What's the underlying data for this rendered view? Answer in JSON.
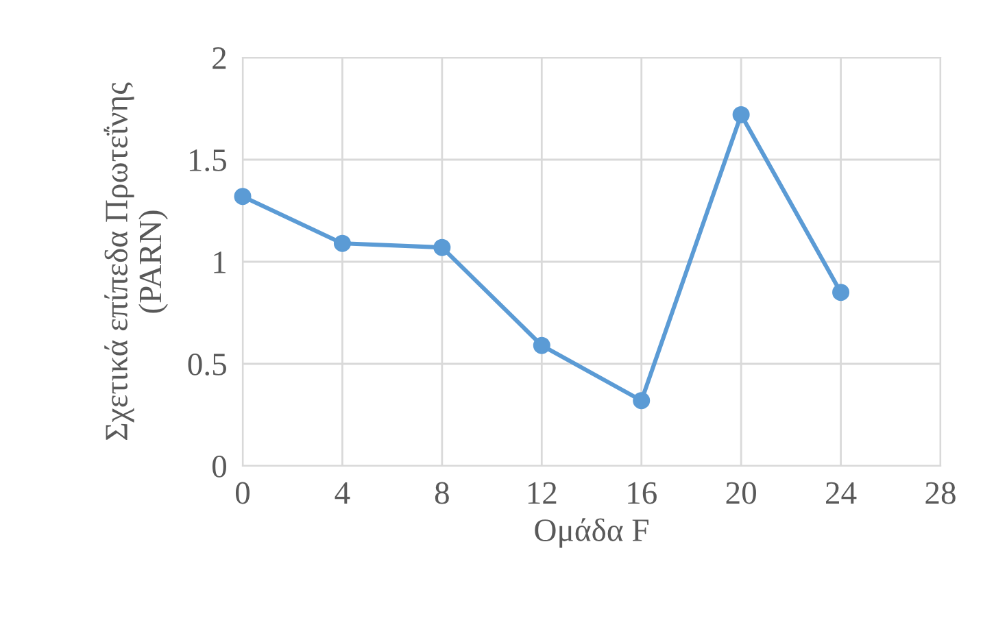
{
  "chart_data": {
    "type": "line",
    "xlabel": "Ομάδα F",
    "ylabel": "Σχετικά επίπεδα Πρωτεΐνης\n(PARN)",
    "x": [
      0,
      4,
      8,
      12,
      16,
      20,
      24
    ],
    "series": [
      {
        "color": "#5b9bd5",
        "values": [
          1.32,
          1.09,
          1.07,
          0.59,
          0.32,
          1.72,
          0.85
        ]
      }
    ],
    "xlim": [
      0,
      28
    ],
    "xticks": [
      0,
      4,
      8,
      12,
      16,
      20,
      24,
      28
    ],
    "ylim": [
      0,
      2
    ],
    "yticks": [
      0,
      0.5,
      1,
      1.5,
      2
    ],
    "grid": true,
    "marker": "circle",
    "line_style": "solid"
  }
}
